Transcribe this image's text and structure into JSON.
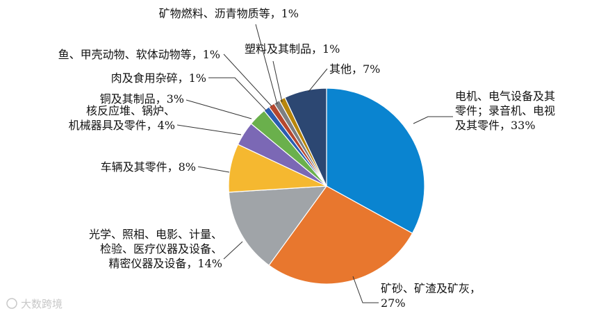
{
  "chart_data": {
    "type": "pie",
    "title": "",
    "start_angle_deg": 0,
    "direction": "clockwise",
    "legend": "none",
    "slices": [
      {
        "name": "电机、电气设备及其零件；录音机、电视及其零件",
        "value": 33,
        "color": "#0a84d0",
        "label_lines": [
          "电机、电气设备及其",
          "零件；录音机、电视",
          "及其零件，33%"
        ]
      },
      {
        "name": "矿砂、矿渣及矿灰",
        "value": 27,
        "color": "#e8772e",
        "label_lines": [
          "矿砂、矿渣及矿灰，",
          "27%"
        ]
      },
      {
        "name": "光学、照相、电影、计量、检验、医疗仪器及设备、精密仪器及设备",
        "value": 14,
        "color": "#a0a4a8",
        "label_lines": [
          "光学、照相、电影、计量、",
          "检验、医疗仪器及设备、",
          "精密仪器及设备，14%"
        ]
      },
      {
        "name": "车辆及其零件",
        "value": 8,
        "color": "#f5b830",
        "label_lines": [
          "车辆及其零件，8%"
        ]
      },
      {
        "name": "核反应堆、锅炉、机械器具及零件",
        "value": 4,
        "color": "#7b68b5",
        "label_lines": [
          "核反应堆、锅炉、",
          "机械器具及零件，4%"
        ]
      },
      {
        "name": "铜及其制品",
        "value": 3,
        "color": "#6ab04c",
        "label_lines": [
          "铜及其制品，3%"
        ]
      },
      {
        "name": "肉及食用杂碎",
        "value": 1,
        "color": "#2a5db0",
        "label_lines": [
          "肉及食用杂碎，1%"
        ]
      },
      {
        "name": "鱼、甲壳动物、软体动物等",
        "value": 1,
        "color": "#b5472e",
        "label_lines": [
          "鱼、甲壳动物、软体动物等，1%"
        ]
      },
      {
        "name": "矿物燃料、沥青物质等",
        "value": 1,
        "color": "#7d7f82",
        "label_lines": [
          "矿物燃料、沥青物质等，1%"
        ]
      },
      {
        "name": "塑料及其制品",
        "value": 1,
        "color": "#b8860b",
        "label_lines": [
          "塑料及其制品，1%"
        ]
      },
      {
        "name": "其他",
        "value": 7,
        "color": "#2c4772",
        "label_lines": [
          "其他，7%"
        ]
      }
    ]
  },
  "watermark": {
    "text": "大数跨境"
  }
}
